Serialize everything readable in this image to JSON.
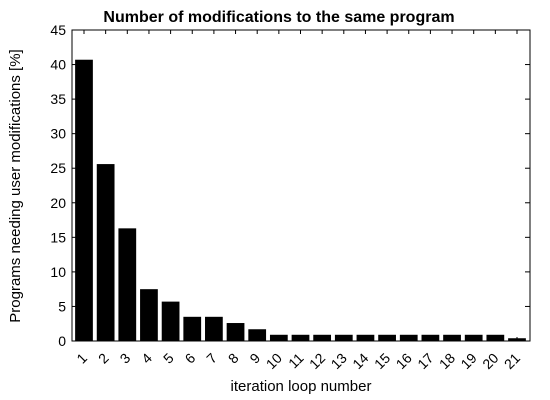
{
  "chart_data": {
    "type": "bar",
    "title": "Number of modifications to the same program",
    "xlabel": "iteration loop number",
    "ylabel": "Programs needing user modifications [%]",
    "categories": [
      "1",
      "2",
      "3",
      "4",
      "5",
      "6",
      "7",
      "8",
      "9",
      "10",
      "11",
      "12",
      "13",
      "14",
      "15",
      "16",
      "17",
      "18",
      "19",
      "20",
      "21"
    ],
    "values": [
      40.7,
      25.6,
      16.3,
      7.5,
      5.7,
      3.5,
      3.5,
      2.6,
      1.7,
      0.9,
      0.9,
      0.9,
      0.9,
      0.9,
      0.9,
      0.9,
      0.9,
      0.9,
      0.9,
      0.9,
      0.4
    ],
    "ylim": [
      0,
      45
    ],
    "yticks": [
      0,
      5,
      10,
      15,
      20,
      25,
      30,
      35,
      40,
      45
    ],
    "grid": false,
    "bar_color": "#000000"
  }
}
